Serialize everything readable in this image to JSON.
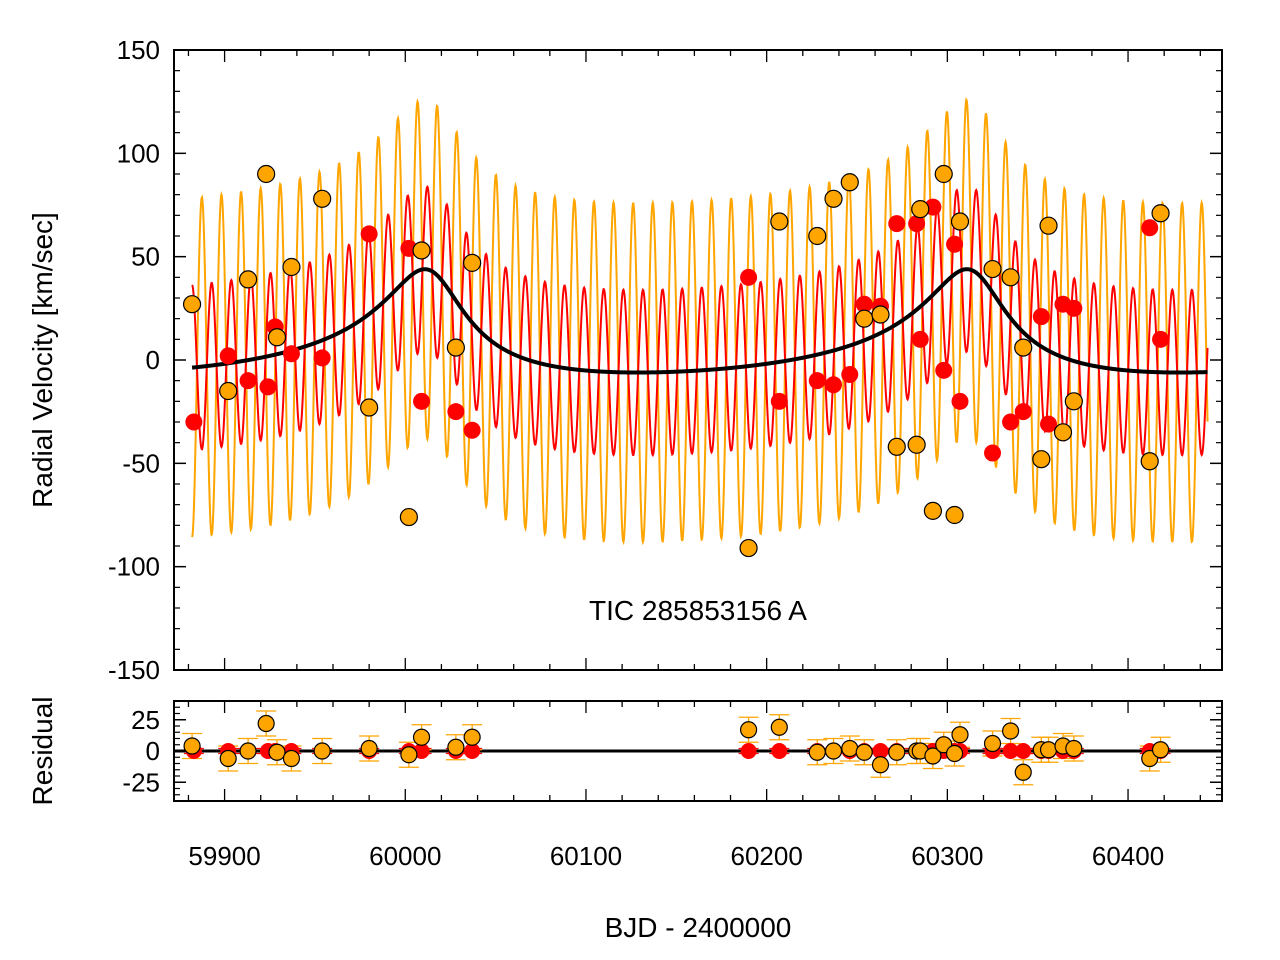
{
  "chart_data": [
    {
      "type": "scatter",
      "panel": "main",
      "ylabel": "Radial Velocity [km/sec]",
      "xlabel": "",
      "annotation": "TIC 285853156 A",
      "xlim": [
        59872,
        60452
      ],
      "ylim": [
        -150,
        150
      ],
      "xticks": [
        59900,
        60000,
        60100,
        60200,
        60300,
        60400
      ],
      "xtick_labels": [
        "59900",
        "60000",
        "60100",
        "60200",
        "60300",
        "60400"
      ],
      "yticks": [
        -150,
        -100,
        -50,
        0,
        50,
        100,
        150
      ],
      "ytick_labels": [
        "-150",
        "-100",
        "-50",
        "0",
        "50",
        "100",
        "150"
      ],
      "colors": {
        "primary": "#ff0000",
        "secondary": "#ffa500",
        "outer_orbit": "#000000",
        "edge": "#000000"
      },
      "model": {
        "x_range": [
          59882,
          60444
        ],
        "inner_period_days": 10.85,
        "outer_period_days": 300,
        "outer_periastron": 60015,
        "outer_semi_amplitude": 25,
        "outer_offset": 7,
        "inner_amp_primary": 40,
        "inner_amp_secondary": 82
      },
      "series": [
        {
          "name": "Primary",
          "points": [
            [
              59883,
              -30
            ],
            [
              59902,
              2
            ],
            [
              59913,
              -10
            ],
            [
              59924,
              -13
            ],
            [
              59928,
              16
            ],
            [
              59937,
              3
            ],
            [
              59954,
              1
            ],
            [
              59980,
              61
            ],
            [
              60002,
              54
            ],
            [
              60009,
              -20
            ],
            [
              60028,
              -25
            ],
            [
              60037,
              -34
            ],
            [
              60190,
              40
            ],
            [
              60207,
              -20
            ],
            [
              60228,
              -10
            ],
            [
              60237,
              -12
            ],
            [
              60246,
              -7
            ],
            [
              60254,
              27
            ],
            [
              60263,
              26
            ],
            [
              60272,
              66
            ],
            [
              60283,
              66
            ],
            [
              60285,
              10
            ],
            [
              60292,
              74
            ],
            [
              60298,
              -5
            ],
            [
              60304,
              56
            ],
            [
              60307,
              -20
            ],
            [
              60325,
              -45
            ],
            [
              60335,
              -30
            ],
            [
              60342,
              -25
            ],
            [
              60352,
              21
            ],
            [
              60356,
              -31
            ],
            [
              60364,
              27
            ],
            [
              60370,
              25
            ],
            [
              60412,
              64
            ],
            [
              60418,
              10
            ]
          ]
        },
        {
          "name": "Secondary",
          "points": [
            [
              59882,
              27
            ],
            [
              59902,
              -15
            ],
            [
              59913,
              39
            ],
            [
              59923,
              90
            ],
            [
              59929,
              11
            ],
            [
              59937,
              45
            ],
            [
              59954,
              78
            ],
            [
              59980,
              -23
            ],
            [
              60002,
              -76
            ],
            [
              60009,
              53
            ],
            [
              60028,
              6
            ],
            [
              60037,
              47
            ],
            [
              60190,
              -91
            ],
            [
              60207,
              67
            ],
            [
              60228,
              60
            ],
            [
              60237,
              78
            ],
            [
              60246,
              86
            ],
            [
              60254,
              20
            ],
            [
              60263,
              22
            ],
            [
              60272,
              -42
            ],
            [
              60283,
              -41
            ],
            [
              60285,
              73
            ],
            [
              60292,
              -73
            ],
            [
              60298,
              90
            ],
            [
              60304,
              -75
            ],
            [
              60307,
              67
            ],
            [
              60325,
              44
            ],
            [
              60335,
              40
            ],
            [
              60342,
              6
            ],
            [
              60352,
              -48
            ],
            [
              60356,
              65
            ],
            [
              60364,
              -35
            ],
            [
              60370,
              -20
            ],
            [
              60412,
              -49
            ],
            [
              60418,
              71
            ]
          ]
        }
      ]
    },
    {
      "type": "scatter",
      "panel": "residual",
      "ylabel": "Residual",
      "xlabel": "BJD - 2400000",
      "xlim": [
        59872,
        60452
      ],
      "ylim": [
        -40,
        40
      ],
      "yticks": [
        -25,
        0,
        25
      ],
      "ytick_labels": [
        "-25",
        "0",
        "25"
      ],
      "xticks": [
        59900,
        60000,
        60100,
        60200,
        60300,
        60400
      ],
      "xtick_labels": [
        "59900",
        "60000",
        "60100",
        "60200",
        "60300",
        "60400"
      ],
      "zero_line": 0,
      "series": [
        {
          "name": "Primary",
          "error": 2,
          "points": [
            [
              59883,
              0
            ],
            [
              59902,
              0
            ],
            [
              59913,
              0
            ],
            [
              59924,
              0
            ],
            [
              59928,
              0
            ],
            [
              59937,
              0
            ],
            [
              59954,
              0
            ],
            [
              59980,
              0
            ],
            [
              60002,
              0
            ],
            [
              60009,
              0
            ],
            [
              60028,
              0
            ],
            [
              60037,
              0
            ],
            [
              60190,
              0
            ],
            [
              60207,
              0
            ],
            [
              60228,
              0
            ],
            [
              60237,
              0
            ],
            [
              60246,
              0
            ],
            [
              60254,
              0
            ],
            [
              60263,
              0
            ],
            [
              60272,
              0
            ],
            [
              60283,
              0
            ],
            [
              60285,
              0
            ],
            [
              60292,
              0
            ],
            [
              60298,
              0
            ],
            [
              60304,
              0
            ],
            [
              60307,
              0
            ],
            [
              60325,
              0
            ],
            [
              60335,
              0
            ],
            [
              60342,
              0
            ],
            [
              60352,
              0
            ],
            [
              60356,
              0
            ],
            [
              60364,
              0
            ],
            [
              60370,
              0
            ],
            [
              60412,
              0
            ],
            [
              60418,
              0
            ]
          ]
        },
        {
          "name": "Secondary",
          "error": 10,
          "points": [
            [
              59882,
              4
            ],
            [
              59902,
              -6
            ],
            [
              59913,
              0
            ],
            [
              59923,
              22
            ],
            [
              59929,
              -1
            ],
            [
              59937,
              -6
            ],
            [
              59954,
              0
            ],
            [
              59980,
              2
            ],
            [
              60002,
              -3
            ],
            [
              60009,
              11
            ],
            [
              60028,
              3
            ],
            [
              60037,
              11
            ],
            [
              60190,
              17
            ],
            [
              60207,
              19
            ],
            [
              60228,
              -1
            ],
            [
              60237,
              0
            ],
            [
              60246,
              2
            ],
            [
              60254,
              -1
            ],
            [
              60263,
              -11
            ],
            [
              60272,
              -1
            ],
            [
              60283,
              0
            ],
            [
              60285,
              0
            ],
            [
              60292,
              -4
            ],
            [
              60298,
              5
            ],
            [
              60304,
              -2
            ],
            [
              60307,
              13
            ],
            [
              60325,
              6
            ],
            [
              60335,
              16
            ],
            [
              60342,
              -17
            ],
            [
              60352,
              1
            ],
            [
              60356,
              1
            ],
            [
              60364,
              4
            ],
            [
              60370,
              2
            ],
            [
              60412,
              -6
            ],
            [
              60418,
              1
            ]
          ]
        }
      ]
    }
  ]
}
